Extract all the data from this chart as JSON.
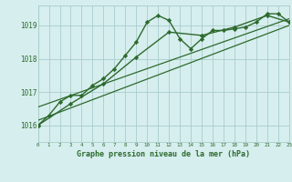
{
  "background_color": "#d6eeee",
  "grid_color": "#aacccc",
  "line_color": "#2d6a2d",
  "title": "Graphe pression niveau de la mer (hPa)",
  "xlim": [
    0,
    23
  ],
  "ylim": [
    1015.5,
    1019.6
  ],
  "yticks": [
    1016,
    1017,
    1018,
    1019
  ],
  "xticks": [
    0,
    1,
    2,
    3,
    4,
    5,
    6,
    7,
    8,
    9,
    10,
    11,
    12,
    13,
    14,
    15,
    16,
    17,
    18,
    19,
    20,
    21,
    22,
    23
  ],
  "series": [
    {
      "x": [
        0,
        1,
        2,
        3,
        4,
        5,
        6,
        7,
        8,
        9,
        10,
        11,
        12,
        13,
        14,
        15,
        16,
        17,
        18,
        19,
        20,
        21,
        22,
        23
      ],
      "y": [
        1016.0,
        1016.3,
        1016.7,
        1016.9,
        1016.9,
        1017.2,
        1017.4,
        1017.7,
        1018.1,
        1018.5,
        1019.1,
        1019.3,
        1019.15,
        1018.6,
        1018.3,
        1018.6,
        1018.85,
        1018.85,
        1018.9,
        1018.95,
        1019.1,
        1019.35,
        1019.35,
        1019.1
      ],
      "marker": "D",
      "markersize": 2.2,
      "linewidth": 1.0
    },
    {
      "x": [
        0,
        3,
        6,
        9,
        12,
        15,
        18,
        21,
        23
      ],
      "y": [
        1016.0,
        1016.65,
        1017.25,
        1018.05,
        1018.8,
        1018.7,
        1018.95,
        1019.3,
        1019.1
      ],
      "marker": "D",
      "markersize": 2.2,
      "linewidth": 1.0
    },
    {
      "x": [
        0,
        23
      ],
      "y": [
        1016.15,
        1019.0
      ],
      "marker": null,
      "markersize": 0,
      "linewidth": 0.9
    },
    {
      "x": [
        0,
        23
      ],
      "y": [
        1016.55,
        1019.2
      ],
      "marker": null,
      "markersize": 0,
      "linewidth": 0.9
    }
  ]
}
